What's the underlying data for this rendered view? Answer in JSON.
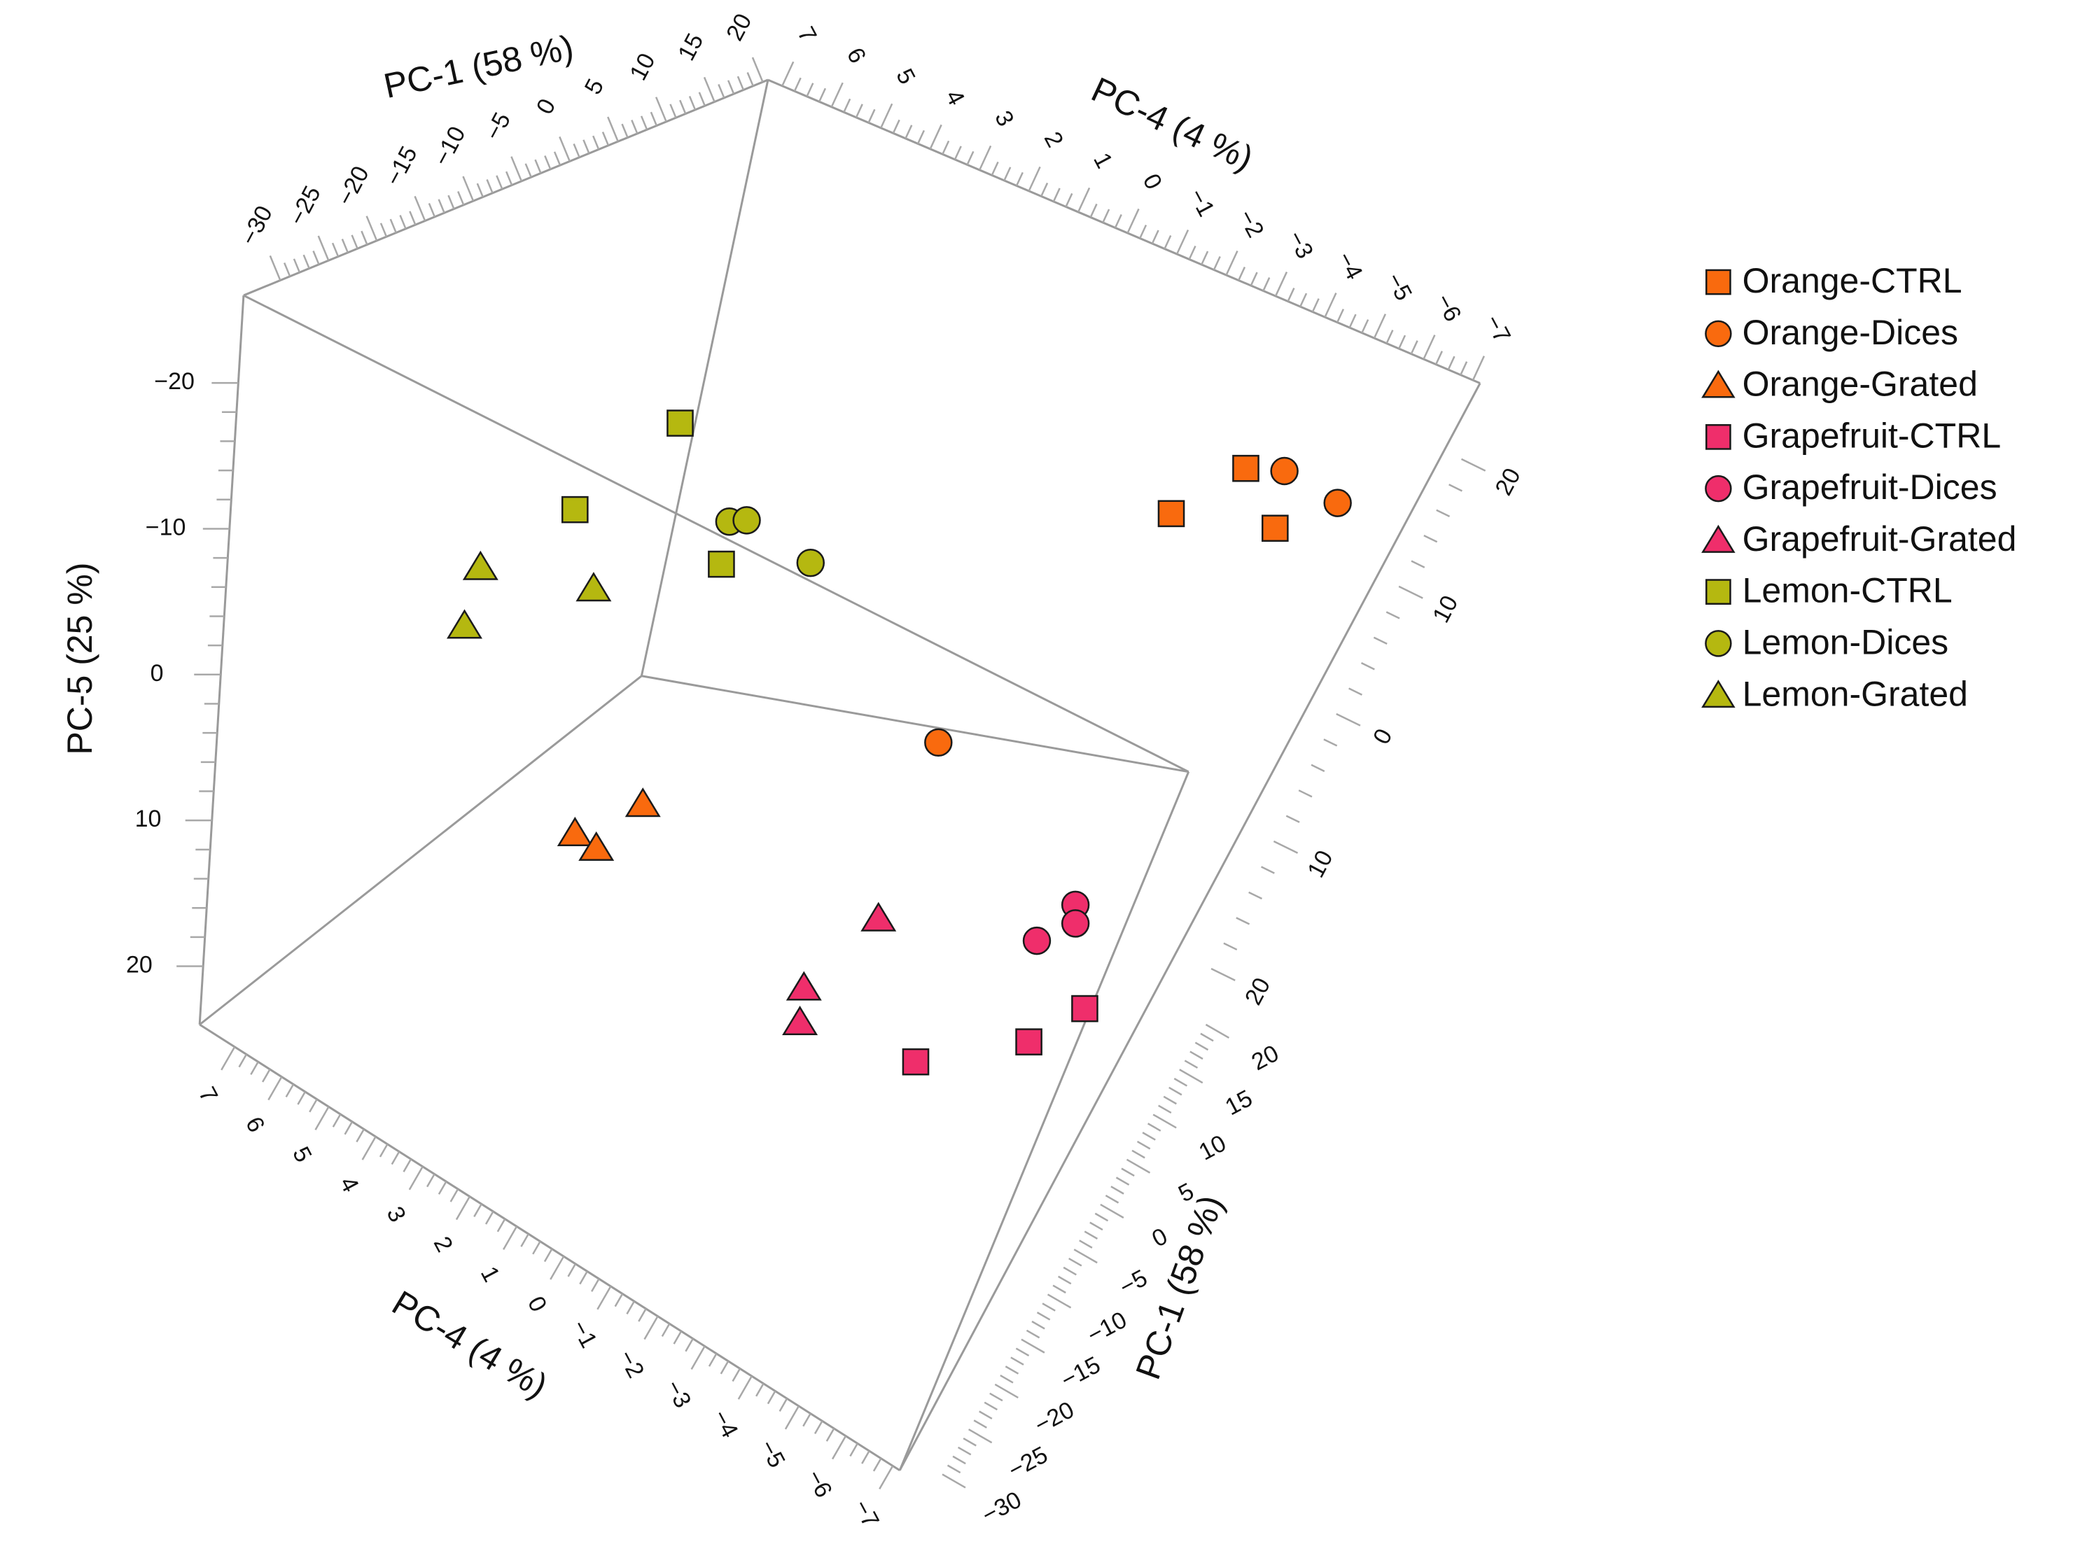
{
  "chart_data": {
    "type": "scatter",
    "title": "",
    "axes": {
      "pc1": {
        "label": "PC-1 (58 %)",
        "range": [
          -30,
          20
        ],
        "ticks": [
          -30,
          -25,
          -20,
          -15,
          -10,
          -5,
          0,
          5,
          10,
          15,
          20
        ]
      },
      "pc4": {
        "label": "PC-4 (4 %)",
        "range": [
          -7,
          7
        ],
        "ticks": [
          7,
          6,
          5,
          4,
          3,
          2,
          1,
          0,
          -1,
          -2,
          -3,
          -4,
          -5,
          -6,
          -7
        ]
      },
      "pc5": {
        "label": "PC-5 (25 %)",
        "range": [
          -20,
          20
        ],
        "ticks": [
          -20,
          -10,
          0,
          10,
          20
        ]
      },
      "pc1_right": {
        "label": "PC-1 (58 %)",
        "ticks": [
          20,
          10,
          0,
          10,
          20
        ]
      }
    },
    "colors": {
      "Orange": "#f96a0e",
      "Grapefruit": "#ef2e6b",
      "Lemon": "#b5b810"
    },
    "legend_position": "right",
    "series": [
      {
        "name": "Orange-CTRL",
        "color": "#f96a0e",
        "marker": "square"
      },
      {
        "name": "Orange-Dices",
        "color": "#f96a0e",
        "marker": "circle"
      },
      {
        "name": "Orange-Grated",
        "color": "#f96a0e",
        "marker": "triangle"
      },
      {
        "name": "Grapefruit-CTRL",
        "color": "#ef2e6b",
        "marker": "square"
      },
      {
        "name": "Grapefruit-Dices",
        "color": "#ef2e6b",
        "marker": "circle"
      },
      {
        "name": "Grapefruit-Grated",
        "color": "#ef2e6b",
        "marker": "triangle"
      },
      {
        "name": "Lemon-CTRL",
        "color": "#b5b810",
        "marker": "square"
      },
      {
        "name": "Lemon-Dices",
        "color": "#b5b810",
        "marker": "circle"
      },
      {
        "name": "Lemon-Grated",
        "color": "#b5b810",
        "marker": "triangle"
      }
    ]
  }
}
